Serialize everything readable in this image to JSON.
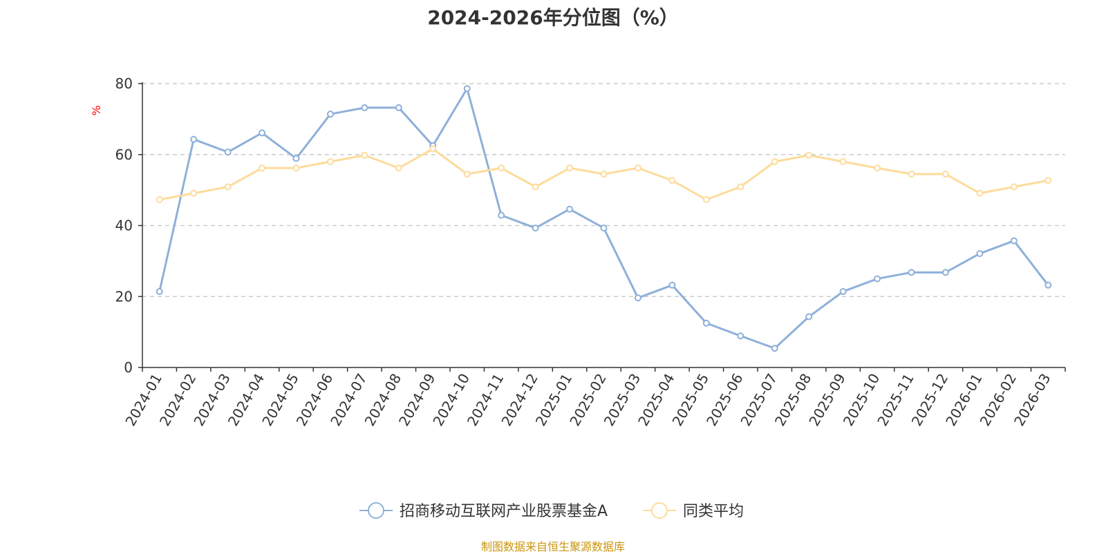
{
  "title": "2024-2026年分位图（%）",
  "source": "制图数据来自恒生聚源数据库",
  "colors": {
    "series_fund": "#8eb0d9",
    "series_avg": "#fddb9a",
    "source_text": "#c8960c",
    "ylabel": "#ff0000",
    "grid": "#cccccc",
    "axis": "#333333"
  },
  "chart_data": {
    "type": "line",
    "title": "2024-2026年分位图（%）",
    "xlabel": "",
    "ylabel": "%",
    "ylim": [
      0,
      80
    ],
    "yticks": [
      0,
      20,
      40,
      60,
      80
    ],
    "grid": "horizontal-dashed",
    "legend_position": "bottom",
    "categories": [
      "2024-01",
      "2024-02",
      "2024-03",
      "2024-04",
      "2024-05",
      "2024-06",
      "2024-07",
      "2024-08",
      "2024-09",
      "2024-10",
      "2024-11",
      "2024-12",
      "2025-01",
      "2025-02",
      "2025-03",
      "2025-04",
      "2025-05",
      "2025-06",
      "2025-07",
      "2025-08",
      "2025-09",
      "2025-10",
      "2025-11",
      "2025-12",
      "2026-01",
      "2026-02",
      "2026-03"
    ],
    "series": [
      {
        "name": "招商移动互联网产业股票基金A",
        "values": [
          21.4,
          64.3,
          60.7,
          66.1,
          58.9,
          71.4,
          73.2,
          73.2,
          62.5,
          78.6,
          42.9,
          39.3,
          44.6,
          39.3,
          19.6,
          23.2,
          12.5,
          8.9,
          5.4,
          14.3,
          21.4,
          25.0,
          26.8,
          26.8,
          32.1,
          35.7,
          23.2
        ]
      },
      {
        "name": "同类平均",
        "values": [
          47.3,
          49.1,
          50.9,
          56.2,
          56.2,
          58.0,
          59.8,
          56.2,
          61.6,
          54.5,
          56.2,
          50.9,
          56.2,
          54.5,
          56.2,
          52.7,
          47.3,
          50.9,
          58.0,
          59.8,
          58.0,
          56.2,
          54.5,
          54.5,
          49.1,
          50.9,
          52.7
        ]
      }
    ]
  }
}
